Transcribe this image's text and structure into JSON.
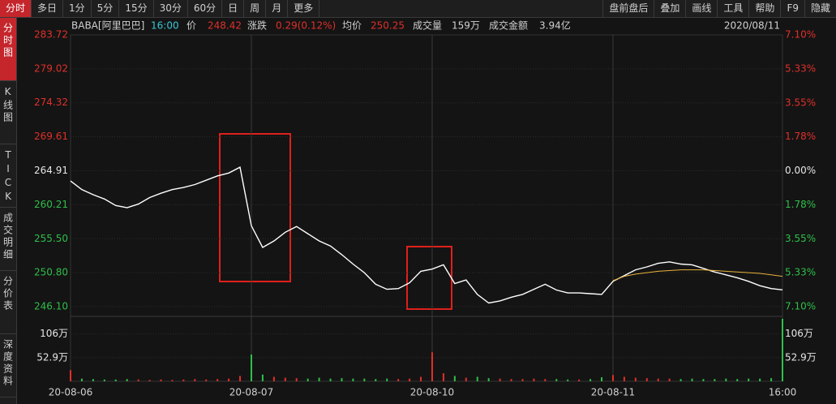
{
  "toolbar": {
    "left": [
      "分时",
      "多日",
      "1分",
      "5分",
      "15分",
      "30分",
      "60分",
      "日",
      "周",
      "月",
      "更多"
    ],
    "right": [
      "盘前盘后",
      "叠加",
      "画线",
      "工具",
      "帮助",
      "F9",
      "隐藏"
    ]
  },
  "side_tabs": [
    "分时图",
    "K线图",
    "TICK",
    "成交明细",
    "分价表",
    "深度资料"
  ],
  "info": {
    "symbol": "BABA[阿里巴巴]",
    "time": "16:00",
    "price_label": "价",
    "price": "248.42",
    "change_label": "涨跌",
    "change": "0.29(0.12%)",
    "avg_label": "均价",
    "avg": "250.25",
    "volume_label": "成交量",
    "volume": "159万",
    "amount_label": "成交金额",
    "amount": "3.94亿",
    "date": "2020/08/11"
  },
  "chart_data": [
    {
      "type": "line",
      "categories": [
        "20-08-06",
        null,
        null,
        null,
        null,
        null,
        null,
        null,
        null,
        null,
        null,
        null,
        null,
        null,
        null,
        null,
        "20-08-07",
        null,
        null,
        null,
        null,
        null,
        null,
        null,
        null,
        null,
        null,
        null,
        null,
        null,
        null,
        null,
        "20-08-10",
        null,
        null,
        null,
        null,
        null,
        null,
        null,
        null,
        null,
        null,
        null,
        null,
        null,
        null,
        null,
        "20-08-11",
        null,
        null,
        null,
        null,
        null,
        null,
        null,
        null,
        null,
        null,
        null,
        null,
        null,
        null,
        "16:00"
      ],
      "series": [
        {
          "color": "#ffffff",
          "values": [
            263.5,
            262.3,
            261.6,
            261.0,
            260.1,
            259.8,
            260.3,
            261.2,
            261.8,
            262.3,
            262.6,
            263.0,
            263.6,
            264.2,
            264.6,
            265.4,
            257.3,
            254.3,
            255.2,
            256.4,
            257.2,
            256.2,
            255.2,
            254.5,
            253.3,
            252.0,
            250.8,
            249.2,
            248.5,
            248.6,
            249.4,
            251.0,
            251.3,
            251.9,
            249.3,
            249.8,
            247.8,
            246.6,
            246.9,
            247.4,
            247.8,
            248.5,
            249.2,
            248.4,
            248.0,
            248.0,
            247.9,
            247.8,
            249.6,
            250.4,
            251.2,
            251.6,
            252.1,
            252.3,
            252.0,
            251.9,
            251.4,
            250.9,
            250.5,
            250.1,
            249.6,
            249.0,
            248.6,
            248.42
          ]
        },
        {
          "color": "#e8b23a",
          "values": [
            null,
            null,
            null,
            null,
            null,
            null,
            null,
            null,
            null,
            null,
            null,
            null,
            null,
            null,
            null,
            null,
            null,
            null,
            null,
            null,
            null,
            null,
            null,
            null,
            null,
            null,
            null,
            null,
            null,
            null,
            null,
            null,
            null,
            null,
            null,
            null,
            null,
            null,
            null,
            null,
            null,
            null,
            null,
            null,
            null,
            null,
            null,
            null,
            249.7,
            250.3,
            250.6,
            250.8,
            251.0,
            251.1,
            251.2,
            251.2,
            251.2,
            251.1,
            251.0,
            250.9,
            250.8,
            250.7,
            250.5,
            250.3
          ]
        }
      ],
      "ylim": [
        246.1,
        283.72
      ],
      "yticks": [
        283.72,
        279.02,
        274.32,
        269.61,
        264.91,
        260.21,
        {
          "value": 255.5,
          "label": "255.50"
        },
        {
          "value": 250.8,
          "label": "250.80"
        },
        {
          "value": 246.1,
          "label": "246.10"
        }
      ],
      "y2lim": [
        -7.1,
        7.1
      ],
      "y2ticks": [
        {
          "value": 7.1,
          "label": "7.10%"
        },
        {
          "value": 5.33,
          "label": "5.33%"
        },
        {
          "value": 3.55,
          "label": "3.55%"
        },
        {
          "value": 1.78,
          "label": "1.78%"
        },
        {
          "value": 0,
          "label": "0.00%"
        },
        {
          "value": -1.78,
          "label": "1.78%"
        },
        {
          "value": -3.55,
          "label": "3.55%"
        },
        {
          "value": -5.33,
          "label": "5.33%"
        },
        {
          "value": -7.1,
          "label": "7.10%"
        }
      ],
      "grid": true,
      "up_color": "#e0302a",
      "down_color": "#2fbf4a"
    },
    {
      "type": "bar",
      "values": [
        25,
        6,
        5,
        4,
        4,
        5,
        4,
        3,
        4,
        3,
        4,
        5,
        4,
        5,
        6,
        12,
        60,
        15,
        10,
        8,
        7,
        6,
        8,
        6,
        7,
        6,
        6,
        5,
        6,
        5,
        6,
        10,
        65,
        18,
        12,
        8,
        10,
        7,
        6,
        5,
        5,
        6,
        5,
        5,
        4,
        4,
        5,
        9,
        14,
        10,
        8,
        7,
        6,
        6,
        5,
        6,
        5,
        5,
        6,
        5,
        6,
        6,
        7,
        140
      ],
      "ylim": [
        0,
        149
      ],
      "yticks": [
        {
          "value": 106,
          "label": "106万"
        },
        {
          "value": 52.9,
          "label": "52.9万"
        }
      ],
      "up_color": "#e0302a",
      "down_color": "#2fbf4a"
    }
  ]
}
